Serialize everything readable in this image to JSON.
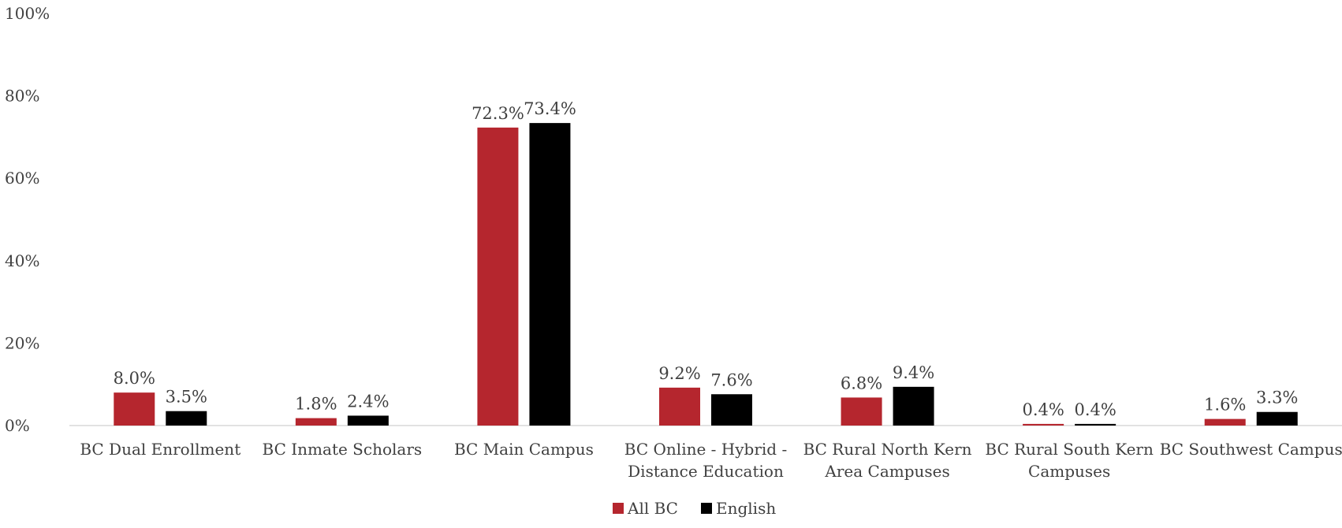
{
  "chart_data": {
    "type": "bar",
    "categories": [
      [
        "BC Dual Enrollment"
      ],
      [
        "BC Inmate Scholars"
      ],
      [
        "BC Main Campus"
      ],
      [
        "BC Online - Hybrid -",
        "Distance Education"
      ],
      [
        "BC Rural North Kern",
        "Area Campuses"
      ],
      [
        "BC Rural South Kern",
        "Campuses"
      ],
      [
        "BC Southwest Campus"
      ]
    ],
    "series": [
      {
        "name": "All BC",
        "color": "#b5262e",
        "values": [
          8.0,
          1.8,
          72.3,
          9.2,
          6.8,
          0.4,
          1.6
        ],
        "labels": [
          "8.0%",
          "1.8%",
          "72.3%",
          "9.2%",
          "6.8%",
          "0.4%",
          "1.6%"
        ]
      },
      {
        "name": "English",
        "color": "#000000",
        "values": [
          3.5,
          2.4,
          73.4,
          7.6,
          9.4,
          0.4,
          3.3
        ],
        "labels": [
          "3.5%",
          "2.4%",
          "73.4%",
          "7.6%",
          "9.4%",
          "0.4%",
          "3.3%"
        ]
      }
    ],
    "y_ticks": [
      {
        "value": 0,
        "label": "0%"
      },
      {
        "value": 20,
        "label": "20%"
      },
      {
        "value": 40,
        "label": "40%"
      },
      {
        "value": 60,
        "label": "60%"
      },
      {
        "value": 80,
        "label": "80%"
      },
      {
        "value": 100,
        "label": "100%"
      }
    ],
    "ylim": [
      0,
      100
    ],
    "grid": false,
    "legend_position": "bottom-center"
  }
}
